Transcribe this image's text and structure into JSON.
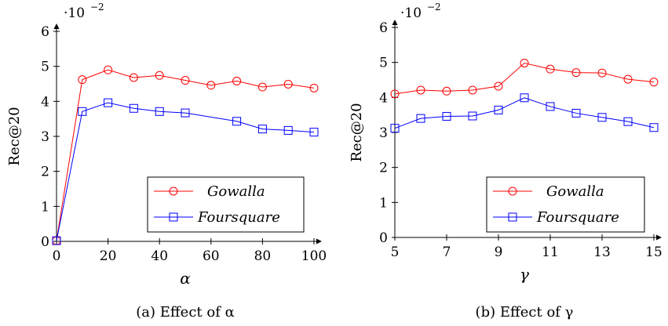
{
  "chart_data": [
    {
      "type": "line",
      "caption": "(a) Effect of α",
      "xlabel": "α",
      "ylabel": "Rec@20",
      "y_multiplier": "·10",
      "y_multiplier_exp": "−2",
      "xlim": [
        0,
        100
      ],
      "ylim": [
        0,
        6
      ],
      "xticks": [
        0,
        20,
        40,
        60,
        80,
        100
      ],
      "yticks": [
        0,
        1,
        2,
        3,
        4,
        5,
        6
      ],
      "legend_position": "bottom-right",
      "series": [
        {
          "name": "Gowalla",
          "color": "#ff0000",
          "marker": "circle",
          "x": [
            0,
            10,
            20,
            30,
            40,
            50,
            60,
            70,
            80,
            90,
            100
          ],
          "y": [
            0.02,
            4.62,
            4.9,
            4.68,
            4.74,
            4.6,
            4.46,
            4.58,
            4.41,
            4.49,
            4.38
          ]
        },
        {
          "name": "Foursquare",
          "color": "#0000ff",
          "marker": "square",
          "x": [
            0,
            10,
            20,
            30,
            40,
            50,
            70,
            80,
            90,
            100
          ],
          "y": [
            0.02,
            3.71,
            3.96,
            3.8,
            3.71,
            3.67,
            3.43,
            3.21,
            3.17,
            3.12
          ]
        }
      ]
    },
    {
      "type": "line",
      "caption": "(b) Effect of γ",
      "xlabel": "γ",
      "ylabel": "Rec@20",
      "y_multiplier": "·10",
      "y_multiplier_exp": "−2",
      "xlim": [
        5,
        15
      ],
      "ylim": [
        0,
        6
      ],
      "xticks": [
        5,
        7,
        9,
        11,
        13,
        15
      ],
      "yticks": [
        0,
        1,
        2,
        3,
        4,
        5,
        6
      ],
      "legend_position": "bottom-right",
      "series": [
        {
          "name": "Gowalla",
          "color": "#ff0000",
          "marker": "circle",
          "x": [
            5,
            6,
            7,
            8,
            9,
            10,
            11,
            12,
            13,
            14,
            15
          ],
          "y": [
            4.1,
            4.21,
            4.18,
            4.21,
            4.32,
            4.98,
            4.81,
            4.71,
            4.7,
            4.52,
            4.44
          ]
        },
        {
          "name": "Foursquare",
          "color": "#0000ff",
          "marker": "square",
          "x": [
            5,
            6,
            7,
            8,
            9,
            10,
            11,
            12,
            13,
            14,
            15
          ],
          "y": [
            3.12,
            3.4,
            3.46,
            3.47,
            3.64,
            3.99,
            3.74,
            3.55,
            3.43,
            3.31,
            3.14
          ]
        }
      ]
    }
  ]
}
